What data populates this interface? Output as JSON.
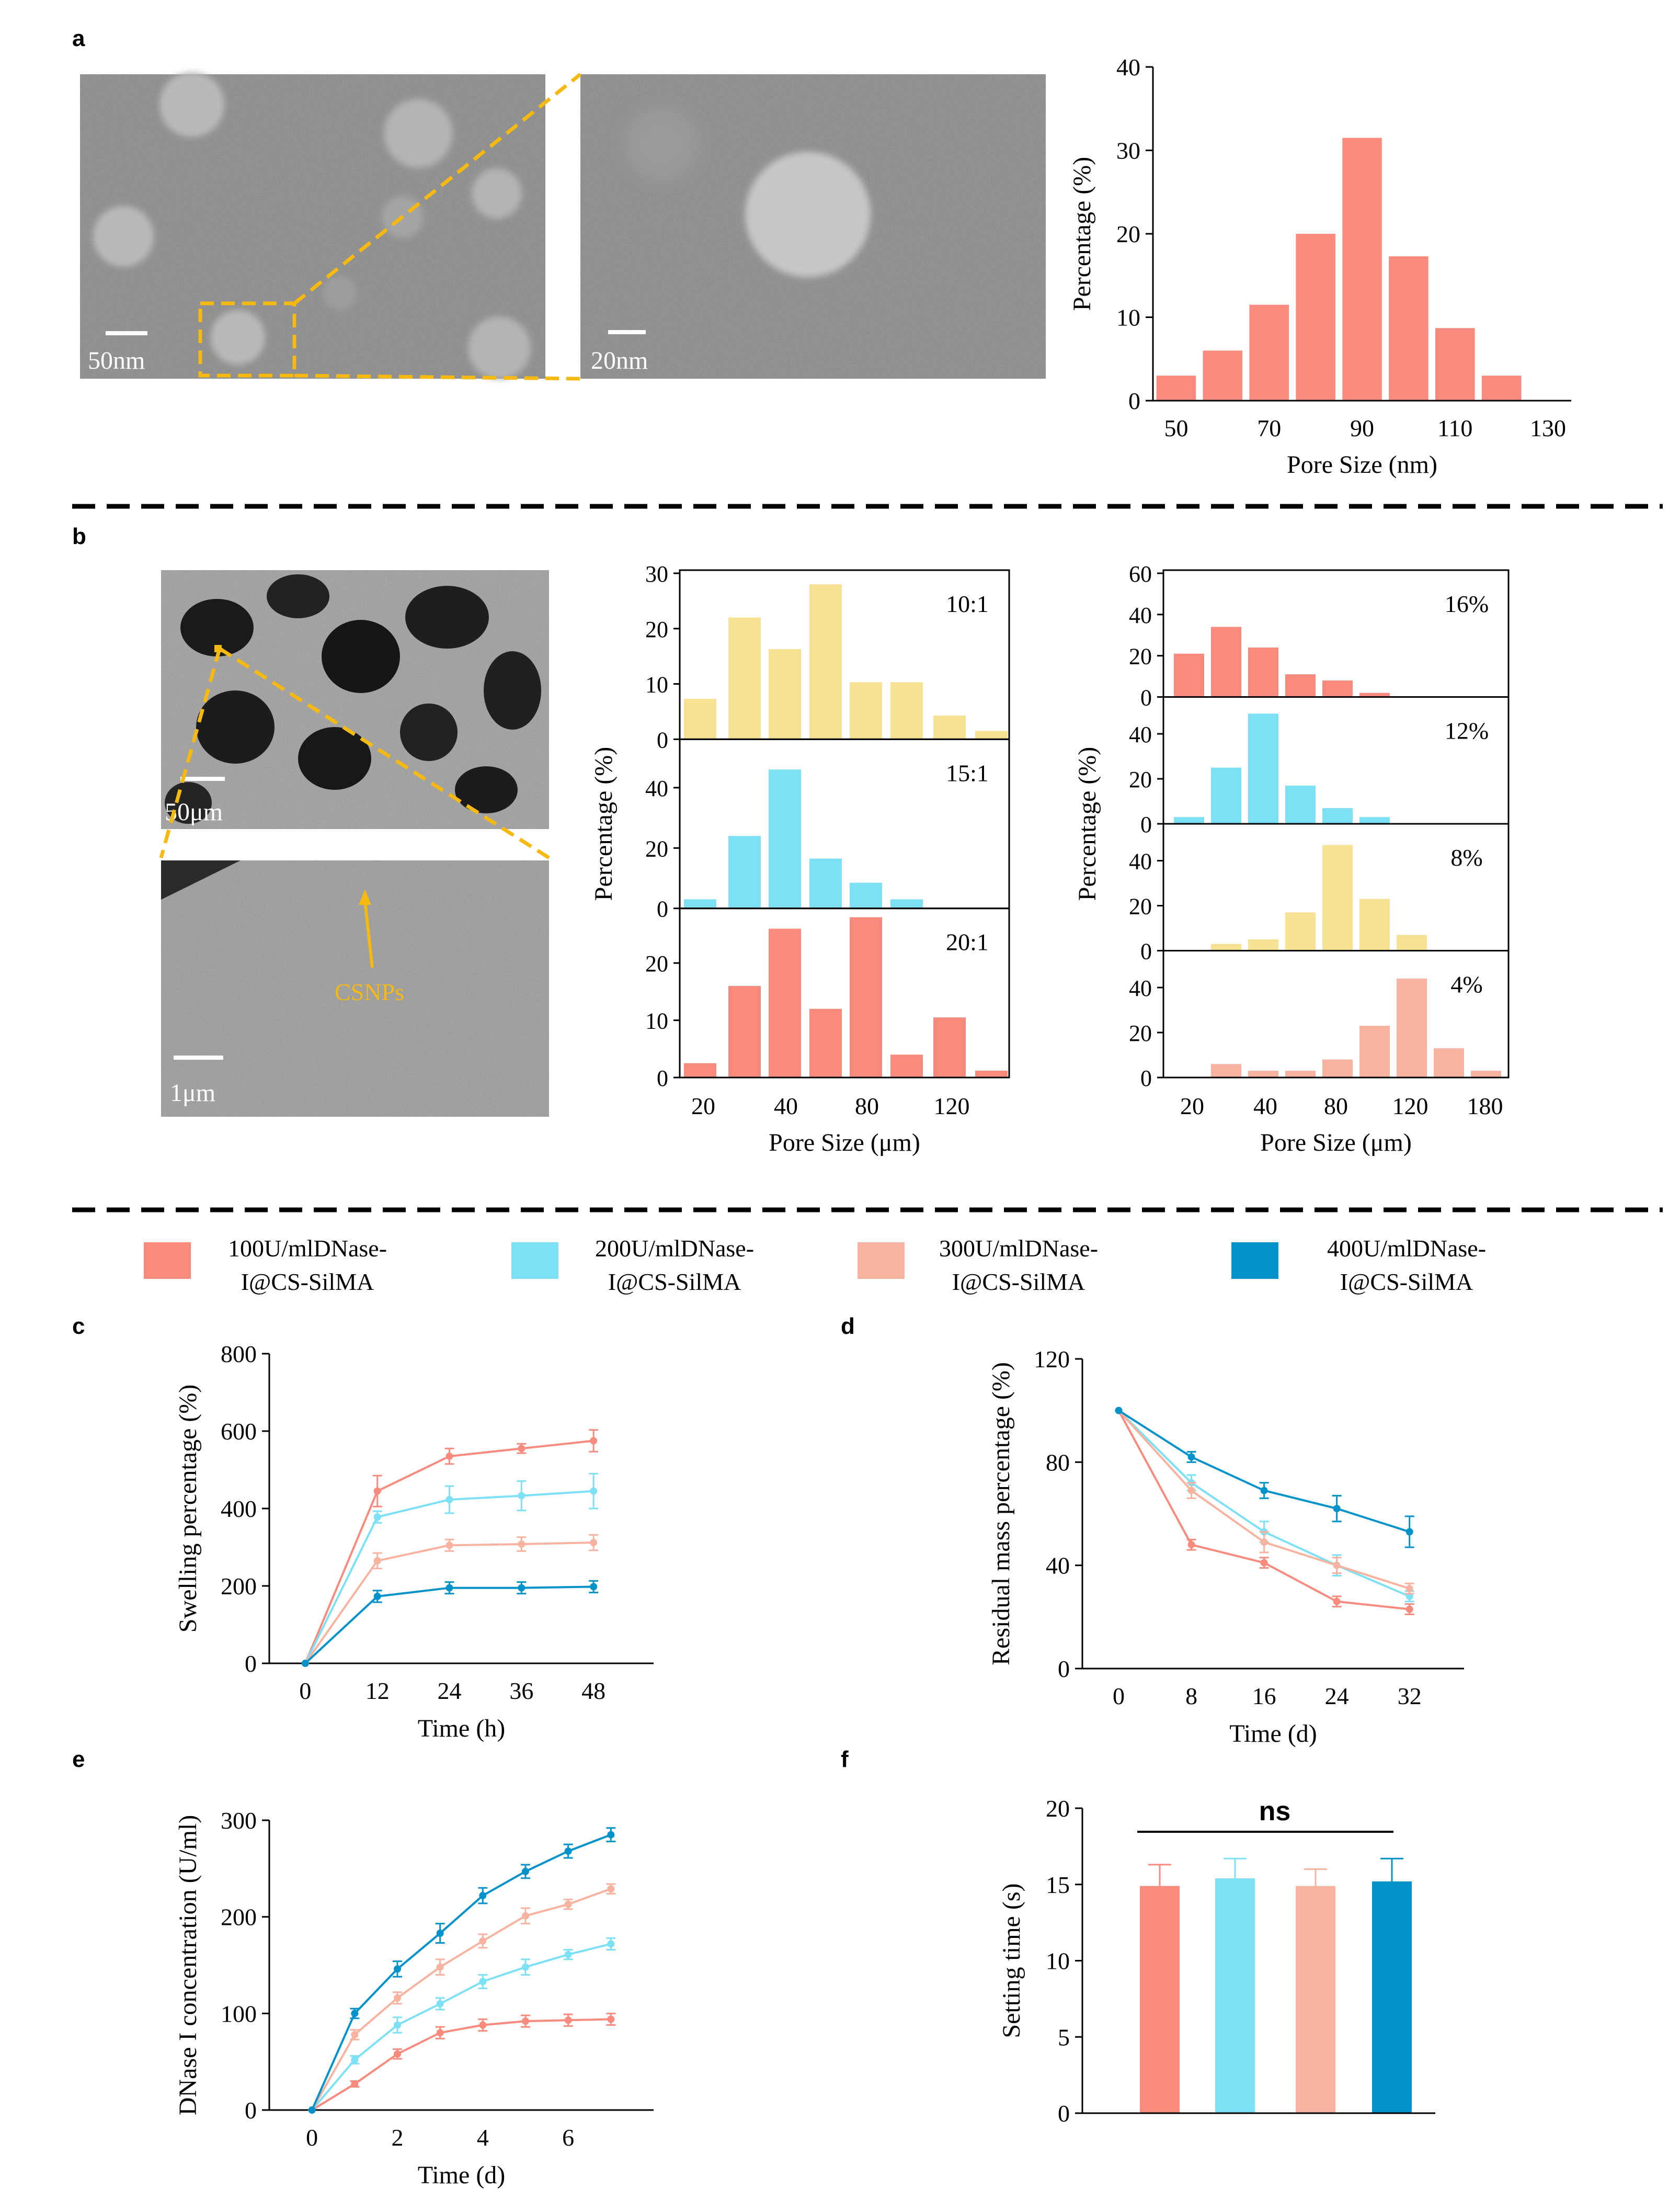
{
  "panel_labels": {
    "a": "a",
    "b": "b",
    "c": "c",
    "d": "d",
    "e": "e",
    "f": "f"
  },
  "micrographs": {
    "a_left_scale": "50nm",
    "a_right_scale": "20nm",
    "b_top_scale": "50μm",
    "b_bottom_scale": "1μm",
    "b_arrow_label": "CSNPs"
  },
  "legend": [
    {
      "line1": "100U/mlDNase-",
      "line2": "I@CS-SilMA",
      "color": "#F88A7E"
    },
    {
      "line1": "200U/mlDNase-",
      "line2": "I@CS-SilMA",
      "color": "#7DE0F5"
    },
    {
      "line1": "300U/mlDNase-",
      "line2": "I@CS-SilMA",
      "color": "#F8B3A0"
    },
    {
      "line1": "400U/mlDNase-",
      "line2": "I@CS-SilMA",
      "color": "#0092C8"
    }
  ],
  "colors": {
    "coral": "#F88A7E",
    "cyan": "#7DE0F5",
    "peach": "#F8B3A0",
    "blue": "#0092C8",
    "yellow": "#F7E294",
    "gold": "#F5B90F"
  },
  "chart_data": [
    {
      "id": "a_hist",
      "type": "bar",
      "xlabel": "Pore Size (nm)",
      "ylabel": "Percentage (%)",
      "xticks": [
        "50",
        "70",
        "90",
        "110",
        "130"
      ],
      "xlim": [
        45,
        135
      ],
      "yticks": [
        "0",
        "10",
        "20",
        "30",
        "40"
      ],
      "ylim": [
        0,
        40
      ],
      "bin_centers": [
        50,
        60,
        70,
        80,
        90,
        100,
        110,
        120
      ],
      "values": [
        3,
        6,
        11.5,
        20,
        31.5,
        17.3,
        8.7,
        3
      ],
      "color": "#F88A7E"
    },
    {
      "id": "b_mid",
      "type": "bar",
      "xlabel": "Pore Size (μm)",
      "ylabel": "Percentage (%)",
      "xticks": [
        "20",
        "40",
        "80",
        "120"
      ],
      "panels": [
        {
          "label": "10:1",
          "color": "#F7E294",
          "yticks": [
            "0",
            "10",
            "20",
            "30"
          ],
          "ylim": [
            0,
            30
          ],
          "values": [
            7.3,
            22,
            16.3,
            28,
            10.3,
            10.3,
            4.3,
            1.5
          ]
        },
        {
          "label": "15:1",
          "color": "#7DE0F5",
          "yticks": [
            "0",
            "20",
            "40"
          ],
          "ylim": [
            0,
            55
          ],
          "values": [
            3,
            24,
            46,
            16.5,
            8.5,
            3,
            0,
            0
          ]
        },
        {
          "label": "20:1",
          "color": "#F88A7E",
          "yticks": [
            "0",
            "10",
            "20"
          ],
          "ylim": [
            0,
            29
          ],
          "values": [
            2.5,
            16,
            26,
            12,
            28,
            4,
            10.5,
            1.2
          ]
        }
      ]
    },
    {
      "id": "b_right",
      "type": "bar",
      "xlabel": "Pore Size (μm)",
      "ylabel": "Percentage (%)",
      "xticks": [
        "20",
        "40",
        "80",
        "120",
        "180"
      ],
      "panels": [
        {
          "label": "16%",
          "color": "#F88A7E",
          "yticks": [
            "0",
            "20",
            "40",
            "60"
          ],
          "ylim": [
            0,
            60
          ],
          "values": [
            21,
            34,
            24,
            11,
            8,
            2,
            0,
            0,
            0
          ]
        },
        {
          "label": "12%",
          "color": "#7DE0F5",
          "yticks": [
            "0",
            "20",
            "40"
          ],
          "ylim": [
            0,
            55
          ],
          "values": [
            3,
            25,
            49,
            17,
            7,
            3,
            0,
            0,
            0
          ]
        },
        {
          "label": "8%",
          "color": "#F7E294",
          "yticks": [
            "0",
            "20",
            "40"
          ],
          "ylim": [
            0,
            55
          ],
          "values": [
            0,
            3,
            5,
            17,
            47,
            23,
            7,
            0,
            0
          ]
        },
        {
          "label": "4%",
          "color": "#F8B3A0",
          "yticks": [
            "0",
            "20",
            "40"
          ],
          "ylim": [
            0,
            55
          ],
          "values": [
            0,
            6,
            3,
            3,
            8,
            23,
            44,
            13,
            3
          ]
        }
      ]
    },
    {
      "id": "c",
      "type": "line",
      "xlabel": "Time (h)",
      "ylabel": "Swelling percentage (%)",
      "x": [
        0,
        12,
        24,
        36,
        48
      ],
      "xlim": [
        -6,
        58
      ],
      "yticks": [
        "0",
        "200",
        "400",
        "600",
        "800"
      ],
      "ylim": [
        0,
        800
      ],
      "series": [
        {
          "name": "100U/mlDNase-I@CS-SilMA",
          "color": "#F88A7E",
          "values": [
            0,
            445,
            535,
            555,
            575
          ],
          "errors": [
            0,
            40,
            20,
            12,
            28
          ]
        },
        {
          "name": "200U/mlDNase-I@CS-SilMA",
          "color": "#7DE0F5",
          "values": [
            0,
            378,
            423,
            433,
            445
          ],
          "errors": [
            0,
            15,
            35,
            38,
            45
          ]
        },
        {
          "name": "300U/mlDNase-I@CS-SilMA",
          "color": "#F8B3A0",
          "values": [
            0,
            265,
            305,
            308,
            312
          ],
          "errors": [
            0,
            20,
            15,
            18,
            20
          ]
        },
        {
          "name": "400U/mlDNase-I@CS-SilMA",
          "color": "#0092C8",
          "values": [
            0,
            173,
            195,
            195,
            198
          ],
          "errors": [
            0,
            15,
            15,
            15,
            15
          ]
        }
      ]
    },
    {
      "id": "d",
      "type": "line",
      "xlabel": "Time (d)",
      "ylabel": "Residual mass percentage (%)",
      "x": [
        0,
        8,
        16,
        24,
        32
      ],
      "xlim": [
        -4,
        38
      ],
      "yticks": [
        "0",
        "40",
        "80",
        "120"
      ],
      "ylim": [
        0,
        120
      ],
      "series": [
        {
          "name": "100U/mlDNase-I@CS-SilMA",
          "color": "#F88A7E",
          "values": [
            100,
            48,
            41,
            26,
            23
          ],
          "errors": [
            0,
            2,
            2,
            2,
            2
          ]
        },
        {
          "name": "200U/mlDNase-I@CS-SilMA",
          "color": "#7DE0F5",
          "values": [
            100,
            72,
            53,
            40,
            28
          ],
          "errors": [
            0,
            3,
            4,
            4,
            2
          ]
        },
        {
          "name": "300U/mlDNase-I@CS-SilMA",
          "color": "#F8B3A0",
          "values": [
            100,
            69,
            49,
            40,
            31
          ],
          "errors": [
            0,
            3,
            4,
            3,
            2
          ]
        },
        {
          "name": "400U/mlDNase-I@CS-SilMA",
          "color": "#0092C8",
          "values": [
            100,
            82,
            69,
            62,
            53
          ],
          "errors": [
            0,
            2,
            3,
            5,
            6
          ]
        }
      ]
    },
    {
      "id": "e",
      "type": "line",
      "xlabel": "Time (d)",
      "ylabel": "DNase I concentration (U/ml)",
      "x": [
        0,
        1,
        2,
        3,
        4,
        5,
        6,
        7
      ],
      "xticks": [
        "0",
        "2",
        "4",
        "6"
      ],
      "xlim": [
        -1,
        8
      ],
      "yticks": [
        "0",
        "100",
        "200",
        "300"
      ],
      "ylim": [
        0,
        300
      ],
      "series": [
        {
          "name": "100U/mlDNase-I@CS-SilMA",
          "color": "#F88A7E",
          "values": [
            0,
            27,
            58,
            80,
            88,
            92,
            93,
            94
          ],
          "errors": [
            0,
            3,
            5,
            6,
            6,
            6,
            6,
            6
          ]
        },
        {
          "name": "200U/mlDNase-I@CS-SilMA",
          "color": "#7DE0F5",
          "values": [
            0,
            52,
            88,
            110,
            133,
            148,
            161,
            172
          ],
          "errors": [
            0,
            4,
            8,
            6,
            7,
            8,
            5,
            6
          ]
        },
        {
          "name": "300U/mlDNase-I@CS-SilMA",
          "color": "#F8B3A0",
          "values": [
            0,
            78,
            116,
            148,
            175,
            201,
            213,
            229
          ],
          "errors": [
            0,
            5,
            6,
            8,
            7,
            8,
            5,
            5
          ]
        },
        {
          "name": "400U/mlDNase-I@CS-SilMA",
          "color": "#0092C8",
          "values": [
            0,
            100,
            146,
            183,
            222,
            247,
            268,
            285
          ],
          "errors": [
            0,
            5,
            8,
            10,
            8,
            7,
            7,
            7
          ]
        }
      ]
    },
    {
      "id": "f",
      "type": "bar",
      "xlabel": "",
      "ylabel": "Setting time (s)",
      "yticks": [
        "0",
        "5",
        "10",
        "15",
        "20"
      ],
      "ylim": [
        0,
        20
      ],
      "categories": [
        "100U/mlDNase-I@CS-SilMA",
        "200U/mlDNase-I@CS-SilMA",
        "300U/mlDNase-I@CS-SilMA",
        "400U/mlDNase-I@CS-SilMA"
      ],
      "values": [
        14.9,
        15.4,
        14.9,
        15.2
      ],
      "errors": [
        1.4,
        1.3,
        1.1,
        1.5
      ],
      "colors": [
        "#F88A7E",
        "#7DE0F5",
        "#F8B3A0",
        "#0092C8"
      ],
      "annotation": "ns"
    }
  ]
}
